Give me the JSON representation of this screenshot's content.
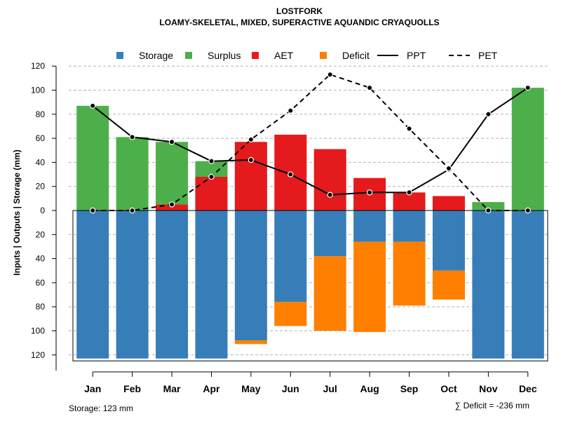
{
  "chart_data": {
    "type": "bar",
    "title": "LOSTFORK",
    "subtitle": "LOAMY-SKELETAL, MIXED, SUPERACTIVE AQUANDIC CRYAQUOLLS",
    "ylabel": "Inputs | Outputs | Storage    (mm)",
    "ylim": [
      -125,
      120
    ],
    "yticks": [
      120,
      100,
      80,
      60,
      40,
      20,
      0,
      20,
      40,
      60,
      80,
      100,
      120
    ],
    "ytick_values": [
      120,
      100,
      80,
      60,
      40,
      20,
      0,
      -20,
      -40,
      -60,
      -80,
      -100,
      -120
    ],
    "grid": true,
    "legend_position": "top",
    "categories": [
      "Jan",
      "Feb",
      "Mar",
      "Apr",
      "May",
      "Jun",
      "Jul",
      "Aug",
      "Sep",
      "Oct",
      "Nov",
      "Dec"
    ],
    "legend": [
      {
        "label": "Storage",
        "kind": "box",
        "color": "#377EB8"
      },
      {
        "label": "Surplus",
        "kind": "box",
        "color": "#4DAF4A"
      },
      {
        "label": "AET",
        "kind": "box",
        "color": "#E41A1C"
      },
      {
        "label": "Deficit",
        "kind": "box",
        "color": "#FF7F00"
      },
      {
        "label": "PPT",
        "kind": "solid-line",
        "color": "#000000"
      },
      {
        "label": "PET",
        "kind": "dashed-line",
        "color": "#000000"
      }
    ],
    "series": [
      {
        "name": "AET",
        "direction": "up",
        "color": "#E41A1C",
        "values": [
          0,
          0,
          5,
          28,
          57,
          63,
          51,
          27,
          15,
          12,
          0,
          0
        ]
      },
      {
        "name": "Surplus",
        "direction": "up",
        "color": "#4DAF4A",
        "values": [
          87,
          61,
          52,
          13,
          0,
          0,
          0,
          0,
          0,
          0,
          7,
          102
        ]
      },
      {
        "name": "Storage",
        "direction": "down",
        "color": "#377EB8",
        "values": [
          123,
          123,
          123,
          123,
          108,
          76,
          38,
          26,
          26,
          50,
          123,
          123
        ]
      },
      {
        "name": "Deficit",
        "direction": "down",
        "color": "#FF7F00",
        "values": [
          0,
          0,
          0,
          0,
          3,
          20,
          62,
          75,
          53,
          24,
          0,
          0
        ]
      },
      {
        "name": "PPT",
        "type": "line",
        "style": "solid",
        "color": "#000000",
        "values": [
          87,
          61,
          57,
          41,
          42,
          30,
          13,
          15,
          15,
          34,
          80,
          102
        ]
      },
      {
        "name": "PET",
        "type": "line",
        "style": "dashed",
        "color": "#000000",
        "values": [
          0,
          0,
          5,
          28,
          59,
          83,
          113,
          102,
          68,
          35,
          0,
          0
        ]
      }
    ],
    "footer_left": "Storage: 123 mm",
    "footer_right": "∑ Deficit = -236 mm"
  }
}
